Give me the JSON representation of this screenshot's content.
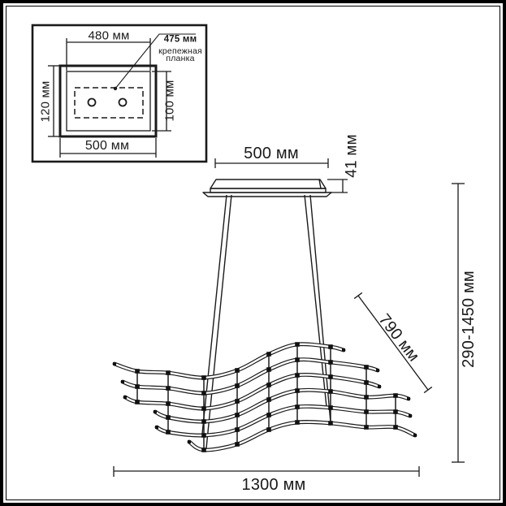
{
  "inset": {
    "width_top": "480 мм",
    "width_bottom": "500 мм",
    "height_left": "120 мм",
    "height_right": "100 мм",
    "plate_width": "475 мм",
    "plate_label": [
      "крепежная",
      "планка"
    ]
  },
  "main": {
    "canopy_width": "500 мм",
    "canopy_height": "41 мм",
    "diagonal_depth": "790 мм",
    "height_range": "290-1450 мм",
    "overall_width": "1300 мм"
  },
  "colors": {
    "ink": "#1a1a1a",
    "paper": "#ffffff"
  }
}
